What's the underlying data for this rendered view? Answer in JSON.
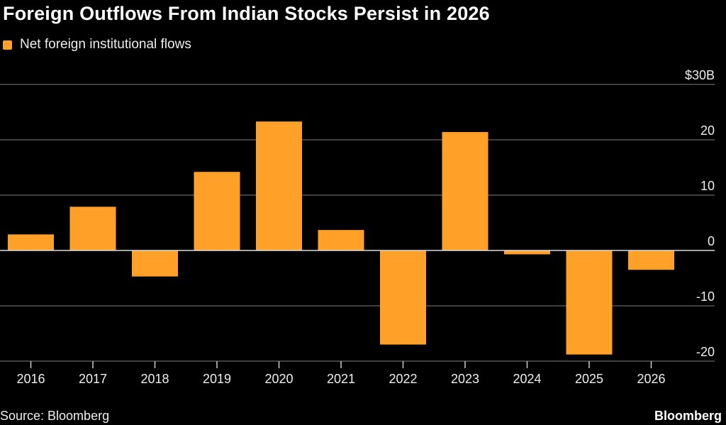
{
  "chart_data": {
    "type": "bar",
    "title": "Foreign Outflows From Indian Stocks Persist in 2026",
    "series": [
      {
        "name": "Net foreign institutional flows",
        "color": "#ffa028",
        "values": [
          2.9,
          7.9,
          -4.7,
          14.2,
          23.3,
          3.7,
          -17.0,
          21.4,
          -0.7,
          -18.8,
          -3.5
        ]
      }
    ],
    "categories": [
      "2016",
      "2017",
      "2018",
      "2019",
      "2020",
      "2021",
      "2022",
      "2023",
      "2024",
      "2025",
      "2026"
    ],
    "ylim": [
      -20,
      30
    ],
    "yticks": [
      -20,
      -10,
      0,
      10,
      20,
      30
    ],
    "ytick_labels": [
      "-20",
      "-10",
      "0",
      "10",
      "20",
      "$30B"
    ],
    "grid": true,
    "y_axis_position": "right",
    "legend": "top-left",
    "source": "Source: Bloomberg",
    "brand": "Bloomberg"
  }
}
